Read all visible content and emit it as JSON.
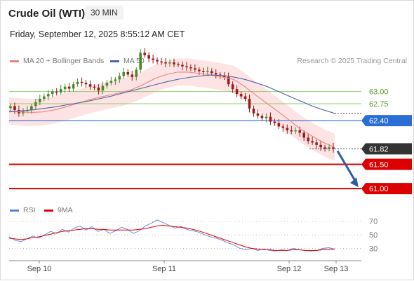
{
  "header": {
    "title": "Crude Oil (WTI)",
    "timeframe": "30 MIN",
    "timestamp": "Friday, September 12, 2025 8:55:12 AM CET"
  },
  "legend": {
    "ma20_label": "MA 20 + Bollinger Bands",
    "ma50_label": "MA 50",
    "rsi_label": "RSI",
    "rsi_ma_label": "9MA",
    "research_credit": "Research © 2025 Trading Central"
  },
  "colors": {
    "ma20": "#f08080",
    "ma50": "#4a66a8",
    "bollinger_fill": "#fde0e0",
    "candle_up": "#4a8a2a",
    "candle_down": "#a01818",
    "pivot": "#2a6fd6",
    "support": "#dd0000",
    "resistance_lines": "#8fce6a",
    "resistance_text": "#5a9a2a",
    "last_price_bg": "#333333",
    "rsi": "#5b7fd6",
    "rsi_ma": "#dd0000",
    "arrow": "#2f5aa6"
  },
  "chart_data": [
    {
      "type": "line",
      "title": "Crude Oil (WTI) 30 MIN",
      "x_tick_labels": [
        "Sep 10",
        "Sep 11",
        "Sep 12",
        "Sep 13"
      ],
      "ylim": [
        60.8,
        63.5
      ],
      "price_levels": [
        {
          "value": 63.0,
          "label": "63.00",
          "kind": "resistance"
        },
        {
          "value": 62.75,
          "label": "62.75",
          "kind": "resistance"
        },
        {
          "value": 62.4,
          "label": "62.40",
          "kind": "pivot"
        },
        {
          "value": 61.82,
          "label": "61.82",
          "kind": "last"
        },
        {
          "value": 61.5,
          "label": "61.50",
          "kind": "support"
        },
        {
          "value": 61.0,
          "label": "61.00",
          "kind": "support"
        }
      ],
      "series": [
        {
          "name": "MA 20 + Bollinger Bands",
          "values": [
            62.6,
            62.58,
            62.57,
            62.58,
            62.62,
            62.68,
            62.75,
            62.82,
            62.88,
            62.93,
            62.98,
            63.05,
            63.15,
            63.27,
            63.35,
            63.4,
            63.4,
            63.37,
            63.34,
            63.3,
            63.25,
            63.1,
            62.92,
            62.75,
            62.58,
            62.4,
            62.22,
            62.08,
            61.95,
            61.85
          ]
        },
        {
          "name": "MA 50",
          "values": [
            62.58,
            62.6,
            62.62,
            62.65,
            62.68,
            62.72,
            62.76,
            62.8,
            62.85,
            62.9,
            62.96,
            63.02,
            63.08,
            63.14,
            63.2,
            63.25,
            63.29,
            63.32,
            63.34,
            63.33,
            63.3,
            63.25,
            63.18,
            63.1,
            63.0,
            62.9,
            62.8,
            62.7,
            62.62,
            62.55
          ]
        }
      ],
      "candles_close": [
        62.7,
        62.62,
        62.55,
        62.6,
        62.62,
        62.7,
        62.78,
        62.85,
        62.9,
        62.95,
        63.0,
        62.98,
        63.05,
        63.1,
        63.06,
        63.15,
        63.2,
        63.18,
        63.15,
        63.1,
        63.08,
        63.02,
        63.12,
        63.18,
        63.22,
        63.25,
        63.32,
        63.4,
        63.35,
        63.3,
        63.45,
        63.8,
        63.75,
        63.68,
        63.65,
        63.62,
        63.6,
        63.58,
        63.6,
        63.56,
        63.55,
        63.52,
        63.5,
        63.48,
        63.45,
        63.42,
        63.4,
        63.42,
        63.38,
        63.35,
        63.33,
        63.3,
        63.15,
        63.05,
        62.95,
        62.9,
        62.85,
        62.65,
        62.55,
        62.5,
        62.45,
        62.48,
        62.38,
        62.35,
        62.28,
        62.25,
        62.2,
        62.18,
        62.2,
        62.15,
        62.05,
        61.98,
        61.95,
        61.9,
        61.85,
        61.82,
        61.85,
        61.82
      ]
    },
    {
      "type": "line",
      "title": "RSI",
      "ylim": [
        15,
        80
      ],
      "y_ticks": [
        70,
        50,
        30
      ],
      "series": [
        {
          "name": "RSI",
          "values": [
            47,
            42,
            40,
            44,
            48,
            45,
            50,
            55,
            52,
            58,
            54,
            60,
            63,
            57,
            62,
            55,
            58,
            52,
            56,
            61,
            58,
            52,
            56,
            63,
            67,
            72,
            68,
            64,
            60,
            62,
            58,
            56,
            54,
            50,
            47,
            45,
            42,
            38,
            35,
            30,
            28,
            30,
            27,
            29,
            27,
            26,
            28,
            27,
            30,
            28,
            27,
            26,
            27,
            30,
            31,
            29
          ]
        },
        {
          "name": "9MA",
          "values": [
            45,
            44,
            43,
            44,
            46,
            47,
            49,
            51,
            53,
            55,
            56,
            57,
            58,
            59,
            59,
            58,
            58,
            57,
            57,
            57,
            57,
            57,
            58,
            59,
            61,
            63,
            64,
            63,
            62,
            61,
            60,
            58,
            56,
            53,
            50,
            47,
            44,
            41,
            38,
            35,
            32,
            30,
            29,
            28,
            28,
            27,
            27,
            27,
            28,
            28,
            27,
            27,
            27,
            28,
            28,
            29
          ]
        }
      ]
    }
  ]
}
